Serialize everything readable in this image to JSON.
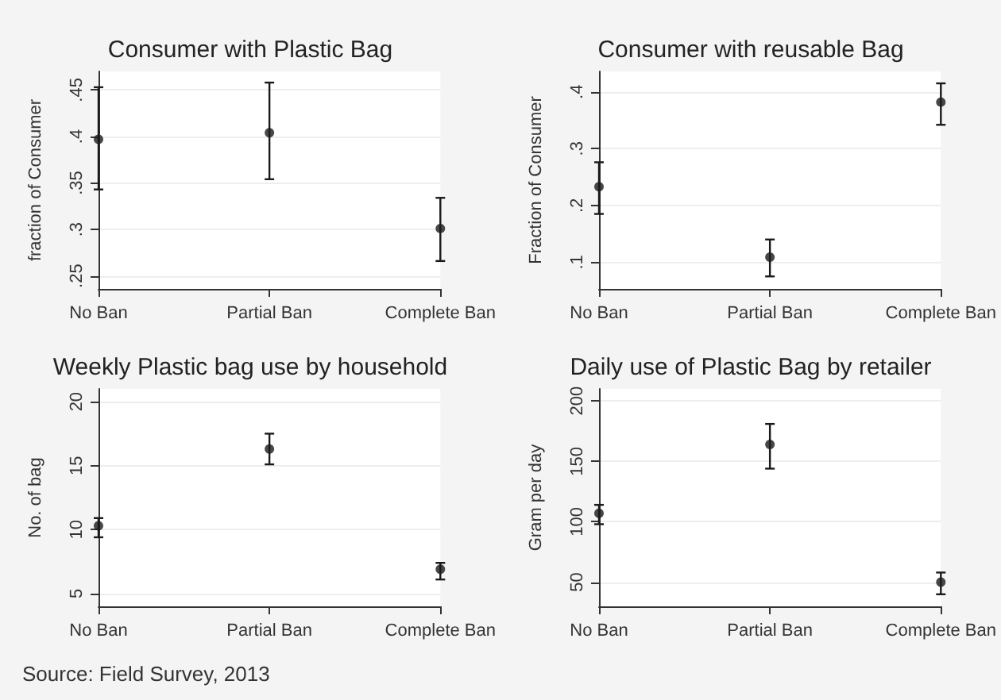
{
  "chart_data": [
    {
      "type": "scatter",
      "title": "Consumer with Plastic Bag",
      "ylabel": "fraction of Consumer",
      "categories": [
        "No Ban",
        "Partial Ban",
        "Complete Ban"
      ],
      "color": "#1a1a1a",
      "values": [
        0.397,
        0.404,
        0.301
      ],
      "errors": [
        [
          0.343,
          0.453
        ],
        [
          0.354,
          0.458
        ],
        [
          0.266,
          0.334
        ]
      ],
      "ylim": [
        0.236,
        0.47
      ],
      "yticks": [
        {
          "value": 0.25,
          "label": ".25"
        },
        {
          "value": 0.3,
          "label": ".3"
        },
        {
          "value": 0.35,
          "label": ".35"
        },
        {
          "value": 0.4,
          "label": ".4"
        },
        {
          "value": 0.45,
          "label": ".45"
        }
      ],
      "grid": "y",
      "marker": "circle"
    },
    {
      "type": "scatter",
      "title": "Consumer with reusable Bag",
      "ylabel": "Fraction of Consumer",
      "categories": [
        "No Ban",
        "Partial Ban",
        "Complete Ban"
      ],
      "color": "#1a1a1a",
      "values": [
        0.233,
        0.109,
        0.382
      ],
      "errors": [
        [
          0.185,
          0.276
        ],
        [
          0.075,
          0.14
        ],
        [
          0.342,
          0.415
        ]
      ],
      "ylim": [
        0.053,
        0.436
      ],
      "yticks": [
        {
          "value": 0.1,
          "label": ".1"
        },
        {
          "value": 0.2,
          "label": ".2"
        },
        {
          "value": 0.3,
          "label": ".3"
        },
        {
          "value": 0.4,
          "label": ".4"
        }
      ],
      "grid": "y",
      "marker": "circle"
    },
    {
      "type": "scatter",
      "title": "Weekly Plastic bag use by household",
      "ylabel": "No. of bag",
      "categories": [
        "No Ban",
        "Partial Ban",
        "Complete Ban"
      ],
      "color": "#1a1a1a",
      "values": [
        10.3,
        16.3,
        6.9
      ],
      "errors": [
        [
          9.4,
          10.9
        ],
        [
          15.1,
          17.5
        ],
        [
          6.1,
          7.4
        ]
      ],
      "ylim": [
        4,
        21
      ],
      "yticks": [
        5,
        10,
        15,
        20
      ],
      "grid": "y",
      "marker": "circle",
      "annotations": [
        "Source: Field Survey, 2013"
      ]
    },
    {
      "type": "scatter",
      "title": "Daily use of Plastic Bag by retailer",
      "ylabel": "Gram per day",
      "categories": [
        "No Ban",
        "Partial Ban",
        "Complete Ban"
      ],
      "color": "#1a1a1a",
      "values": [
        107,
        164,
        50
      ],
      "errors": [
        [
          98,
          114
        ],
        [
          144,
          181
        ],
        [
          40,
          58
        ]
      ],
      "ylim": [
        30,
        210
      ],
      "yticks": [
        50,
        100,
        150,
        200
      ],
      "grid": "y",
      "marker": "circle"
    }
  ]
}
